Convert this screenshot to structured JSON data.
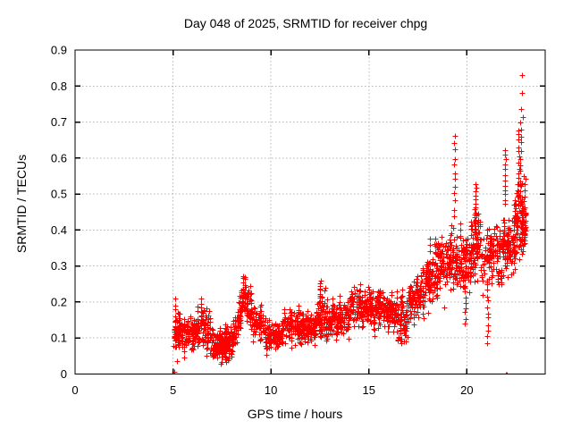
{
  "window": {
    "title": "Day 048 of 2025, SRMTID for receiver chpg"
  },
  "chart_data": {
    "type": "scatter",
    "title": "Day 048 of 2025, SRMTID for receiver chpg",
    "xlabel": "GPS time / hours",
    "ylabel": "SRMTID / TECUs",
    "xlim": [
      0,
      24
    ],
    "ylim": [
      0,
      0.9
    ],
    "xticks": [
      0,
      5,
      10,
      15,
      20
    ],
    "xtick_labels": [
      "0",
      "5",
      "10",
      "15",
      "20"
    ],
    "yticks": [
      0,
      0.1,
      0.2,
      0.3,
      0.4,
      0.5,
      0.6,
      0.7,
      0.8,
      0.9
    ],
    "ytick_labels": [
      "0",
      "0.1",
      "0.2",
      "0.3",
      "0.4",
      "0.5",
      "0.6",
      "0.7",
      "0.8",
      "0.9"
    ],
    "grid": true,
    "legend": "none",
    "marker": "plus",
    "marker_color": "#ff0000",
    "grid_color": "#b5b5b5",
    "border_color": "#000000",
    "background": "#ffffff",
    "data_x_range": [
      5.0,
      23.0
    ],
    "scatter_seed": 2025048,
    "note_envelope": "segments = [x_start, x_end, n_points, y_center_start, y_center_end, y_half_spread] read from the plotted cloud",
    "segments": [
      [
        5.02,
        5.35,
        45,
        0.125,
        0.115,
        0.038
      ],
      [
        5.35,
        6.4,
        110,
        0.115,
        0.12,
        0.032
      ],
      [
        6.4,
        6.9,
        55,
        0.13,
        0.125,
        0.04
      ],
      [
        6.9,
        8.05,
        150,
        0.085,
        0.08,
        0.032
      ],
      [
        8.05,
        8.45,
        45,
        0.1,
        0.17,
        0.035
      ],
      [
        8.45,
        9.0,
        65,
        0.21,
        0.18,
        0.04
      ],
      [
        9.0,
        9.7,
        65,
        0.145,
        0.13,
        0.032
      ],
      [
        9.7,
        10.6,
        90,
        0.105,
        0.105,
        0.03
      ],
      [
        10.6,
        11.8,
        125,
        0.14,
        0.135,
        0.035
      ],
      [
        11.8,
        12.3,
        55,
        0.125,
        0.125,
        0.03
      ],
      [
        12.3,
        12.8,
        55,
        0.165,
        0.17,
        0.045
      ],
      [
        12.8,
        14.0,
        125,
        0.15,
        0.155,
        0.032
      ],
      [
        14.0,
        15.1,
        115,
        0.19,
        0.19,
        0.035
      ],
      [
        15.1,
        16.3,
        125,
        0.185,
        0.175,
        0.038
      ],
      [
        16.3,
        17.0,
        75,
        0.155,
        0.15,
        0.045
      ],
      [
        17.0,
        17.8,
        85,
        0.19,
        0.23,
        0.048
      ],
      [
        17.8,
        18.6,
        95,
        0.25,
        0.29,
        0.055
      ],
      [
        18.6,
        19.3,
        85,
        0.29,
        0.32,
        0.06
      ],
      [
        19.3,
        20.2,
        105,
        0.3,
        0.31,
        0.06
      ],
      [
        20.2,
        20.7,
        75,
        0.36,
        0.38,
        0.07
      ],
      [
        20.7,
        21.6,
        85,
        0.32,
        0.33,
        0.06
      ],
      [
        21.6,
        22.3,
        85,
        0.33,
        0.35,
        0.065
      ],
      [
        22.3,
        23.0,
        115,
        0.4,
        0.44,
        0.085
      ]
    ],
    "note_columns": "columns = vertical burst chains [x, y_low, y_high, n_points]",
    "columns": [
      [
        5.12,
        0.1,
        0.21,
        8
      ],
      [
        6.25,
        0.12,
        0.19,
        5
      ],
      [
        6.45,
        0.13,
        0.21,
        7
      ],
      [
        7.5,
        0.035,
        0.07,
        4
      ],
      [
        8.68,
        0.2,
        0.27,
        8
      ],
      [
        12.52,
        0.19,
        0.26,
        7
      ],
      [
        16.62,
        0.09,
        0.15,
        7
      ],
      [
        19.38,
        0.44,
        0.66,
        12
      ],
      [
        19.92,
        0.14,
        0.26,
        9
      ],
      [
        20.45,
        0.43,
        0.53,
        10
      ],
      [
        21.05,
        0.09,
        0.25,
        11
      ],
      [
        21.95,
        0.47,
        0.62,
        12
      ],
      [
        22.65,
        0.45,
        0.68,
        16
      ],
      [
        22.75,
        0.52,
        0.7,
        10
      ]
    ],
    "outliers": [
      [
        5.05,
        0.0
      ],
      [
        5.07,
        0.005
      ],
      [
        5.2,
        0.035
      ],
      [
        16.66,
        0.085
      ],
      [
        21.97,
        0.0
      ],
      [
        22.06,
        0.0
      ],
      [
        22.8,
        0.83
      ],
      [
        22.83,
        0.78
      ],
      [
        22.79,
        0.735
      ],
      [
        22.86,
        0.715
      ]
    ]
  }
}
